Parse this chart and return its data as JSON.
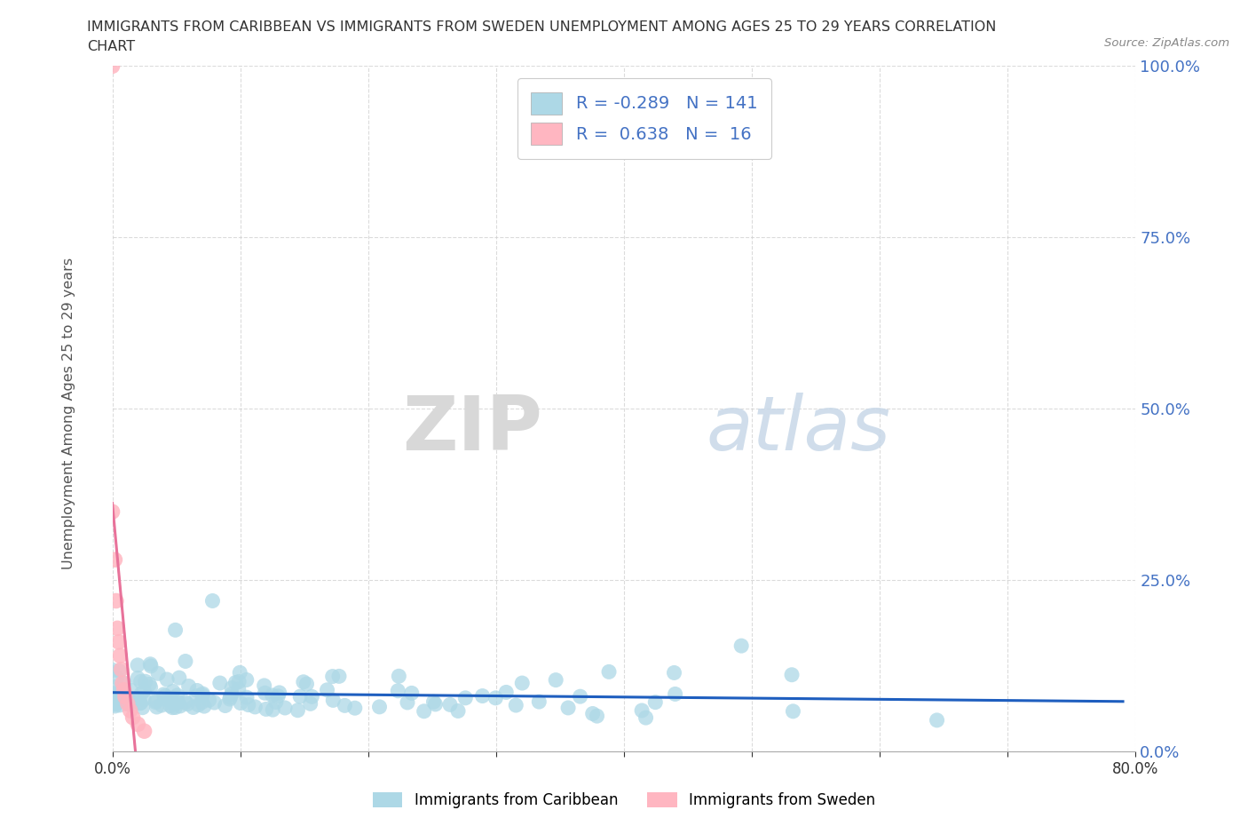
{
  "title_line1": "IMMIGRANTS FROM CARIBBEAN VS IMMIGRANTS FROM SWEDEN UNEMPLOYMENT AMONG AGES 25 TO 29 YEARS CORRELATION",
  "title_line2": "CHART",
  "source_text": "Source: ZipAtlas.com",
  "ylabel": "Unemployment Among Ages 25 to 29 years",
  "xlim": [
    0.0,
    0.8
  ],
  "ylim": [
    0.0,
    1.0
  ],
  "ytick_labels": [
    "0.0%",
    "25.0%",
    "50.0%",
    "75.0%",
    "100.0%"
  ],
  "ytick_positions": [
    0.0,
    0.25,
    0.5,
    0.75,
    1.0
  ],
  "xtick_positions": [
    0.0,
    0.1,
    0.2,
    0.3,
    0.4,
    0.5,
    0.6,
    0.7,
    0.8
  ],
  "xtick_labels": [
    "0.0%",
    "",
    "",
    "",
    "",
    "",
    "",
    "",
    "80.0%"
  ],
  "caribbean_R": -0.289,
  "caribbean_N": 141,
  "sweden_R": 0.638,
  "sweden_N": 16,
  "caribbean_color": "#ADD8E6",
  "sweden_color": "#FFB6C1",
  "caribbean_line_color": "#1E5EBF",
  "sweden_line_color": "#E8729A",
  "ytick_color": "#4472C4",
  "xtick_color": "#333333",
  "ylabel_color": "#555555",
  "watermark_zip": "ZIP",
  "watermark_atlas": "atlas",
  "watermark_color": "#DCDCDC",
  "background_color": "#FFFFFF",
  "grid_color": "#CCCCCC",
  "legend_label_color": "#4472C4",
  "source_color": "#888888"
}
